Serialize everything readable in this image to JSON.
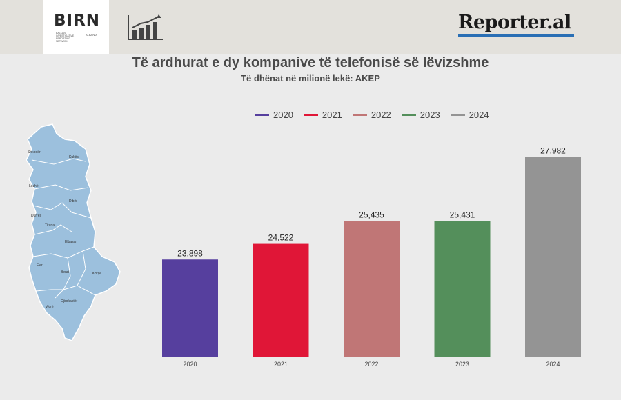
{
  "header": {
    "birn_logo_text": "BIRN",
    "birn_network": "Balkan Investigative Reporting Network",
    "birn_country": "Albania",
    "reporter_logo": "Reporter.al"
  },
  "map": {
    "regions": [
      "Shkodër",
      "Kukës",
      "Lezhë",
      "Dibër",
      "Durrës",
      "Tirana",
      "Elbasan",
      "Fier",
      "Berat",
      "Korçë",
      "Vlorë",
      "Gjirokastër"
    ]
  },
  "chart_data": {
    "type": "bar",
    "title": "Të ardhurat e dy kompanive të telefonisë së lëvizshme",
    "subtitle": "Të dhënat në milionë lekë: AKEP",
    "categories": [
      "2020",
      "2021",
      "2022",
      "2023",
      "2024"
    ],
    "values": [
      23898,
      24522,
      25435,
      25431,
      27982
    ],
    "value_labels": [
      "23,898",
      "24,522",
      "25,435",
      "25,431",
      "27,982"
    ],
    "colors": [
      "#563f9e",
      "#e01637",
      "#c07676",
      "#548f5b",
      "#949494"
    ],
    "legend": [
      "2020",
      "2021",
      "2022",
      "2023",
      "2024"
    ],
    "legend_position": "top",
    "ylim": [
      20000,
      28800
    ],
    "grid": false,
    "xlabel": "",
    "ylabel": ""
  }
}
